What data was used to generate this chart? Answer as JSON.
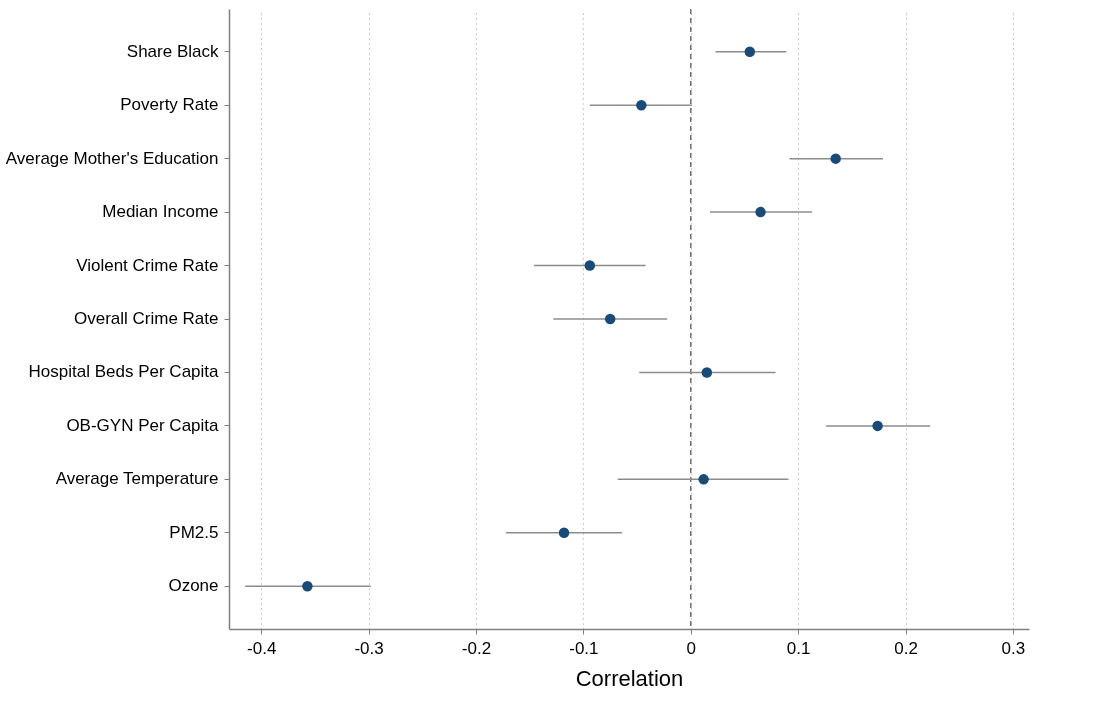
{
  "chart_data": {
    "type": "scatter",
    "orientation": "horizontal",
    "xlabel": "Correlation",
    "categories": [
      "Share Black",
      "Poverty Rate",
      "Average Mother's Education",
      "Median Income",
      "Violent Crime Rate",
      "Overall Crime Rate",
      "Hospital Beds Per Capita",
      "OB-GYN Per Capita",
      "Average Temperature",
      "PM2.5",
      "Ozone"
    ],
    "series": [
      {
        "color": "#1a4a78",
        "values": [
          0.055,
          -0.046,
          0.135,
          0.065,
          -0.094,
          -0.075,
          0.015,
          0.174,
          0.012,
          -0.118,
          -0.357
        ],
        "errors": [
          [
            0.023,
            0.089
          ],
          [
            -0.094,
            0.001
          ],
          [
            0.092,
            0.179
          ],
          [
            0.018,
            0.113
          ],
          [
            -0.146,
            -0.042
          ],
          [
            -0.128,
            -0.022
          ],
          [
            -0.048,
            0.079
          ],
          [
            0.126,
            0.223
          ],
          [
            -0.068,
            0.091
          ],
          [
            -0.172,
            -0.064
          ],
          [
            -0.415,
            -0.298
          ]
        ]
      }
    ],
    "xlim": [
      -0.43,
      0.315
    ],
    "xticks": [
      -0.4,
      -0.3,
      -0.2,
      -0.1,
      0,
      0.1,
      0.2,
      0.3
    ],
    "grid": "x",
    "marker": "circle",
    "ref_lines": [
      {
        "axis": "x",
        "value": 0,
        "color": "#707070",
        "line_style": "dashed"
      }
    ]
  }
}
